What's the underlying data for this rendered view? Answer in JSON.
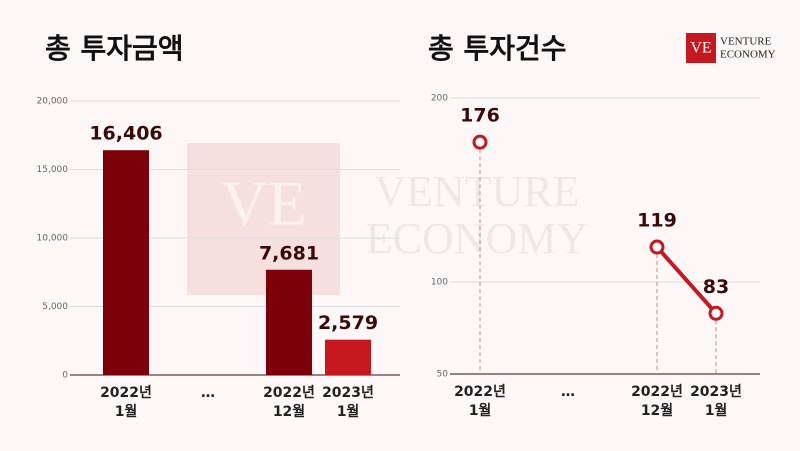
{
  "chart_data": [
    {
      "type": "bar",
      "title": "총 투자금액",
      "categories": [
        "2022년\n1월",
        "…",
        "2022년\n12월",
        "2023년\n1월"
      ],
      "values": [
        16406,
        null,
        7681,
        2579
      ],
      "value_labels": [
        "16,406",
        null,
        "7,681",
        "2,579"
      ],
      "colors": [
        "#7b0009",
        null,
        "#7b0009",
        "#c8181f"
      ],
      "ylim": [
        0,
        20000
      ],
      "yticks": [
        0,
        {
          "value": 5000,
          "label": "5,000"
        },
        {
          "value": 10000,
          "label": "10,000"
        },
        {
          "value": 15000,
          "label": "15,000"
        },
        {
          "value": 20000,
          "label": "20,000"
        }
      ],
      "grid": true
    },
    {
      "type": "line",
      "title": "총 투자건수",
      "categories": [
        "2022년\n1월",
        "…",
        "2022년\n12월",
        "2023년\n1월"
      ],
      "values": [
        176,
        null,
        119,
        83
      ],
      "color": "#c8181f",
      "ylim": [
        50,
        200
      ],
      "yticks": [
        50,
        100,
        200
      ],
      "grid": true
    }
  ],
  "logo": {
    "mark": "VE",
    "text": [
      "VENTURE",
      "ECONOMY"
    ]
  }
}
